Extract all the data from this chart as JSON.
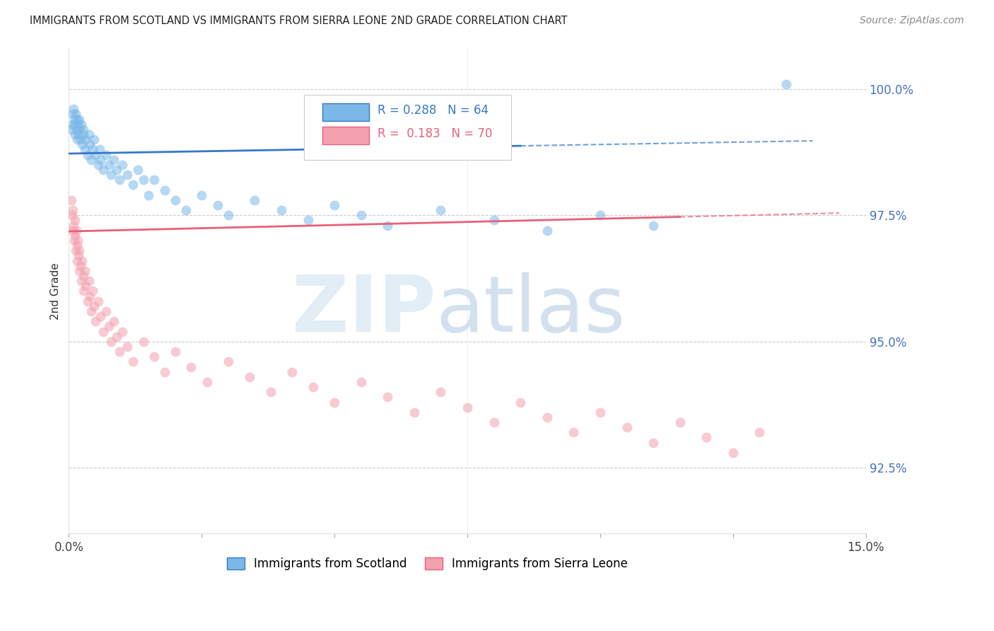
{
  "title": "IMMIGRANTS FROM SCOTLAND VS IMMIGRANTS FROM SIERRA LEONE 2ND GRADE CORRELATION CHART",
  "source": "Source: ZipAtlas.com",
  "ylabel": "2nd Grade",
  "y_ticks": [
    92.5,
    95.0,
    97.5,
    100.0
  ],
  "y_tick_labels": [
    "92.5%",
    "95.0%",
    "97.5%",
    "100.0%"
  ],
  "x_min": 0.0,
  "x_max": 15.0,
  "y_min": 91.2,
  "y_max": 100.8,
  "R_scotland": 0.288,
  "N_scotland": 64,
  "R_sierra_leone": 0.183,
  "N_sierra_leone": 70,
  "scotland_color": "#7ab8e8",
  "sierra_leone_color": "#f4a0b0",
  "scotland_line_color": "#3878c8",
  "sierra_leone_line_color": "#e8607a",
  "legend_scotland": "Immigrants from Scotland",
  "legend_sierra_leone": "Immigrants from Sierra Leone",
  "scotland_x": [
    0.05,
    0.07,
    0.08,
    0.09,
    0.1,
    0.11,
    0.12,
    0.13,
    0.14,
    0.15,
    0.16,
    0.17,
    0.18,
    0.19,
    0.2,
    0.22,
    0.23,
    0.25,
    0.27,
    0.28,
    0.3,
    0.32,
    0.35,
    0.38,
    0.4,
    0.42,
    0.45,
    0.48,
    0.5,
    0.55,
    0.58,
    0.6,
    0.65,
    0.7,
    0.75,
    0.8,
    0.85,
    0.9,
    0.95,
    1.0,
    1.1,
    1.2,
    1.3,
    1.4,
    1.5,
    1.6,
    1.8,
    2.0,
    2.2,
    2.5,
    2.8,
    3.0,
    3.5,
    4.0,
    4.5,
    5.0,
    5.5,
    6.0,
    7.0,
    8.0,
    9.0,
    10.0,
    11.0,
    13.5
  ],
  "scotland_y": [
    99.2,
    99.5,
    99.3,
    99.6,
    99.4,
    99.1,
    99.3,
    99.5,
    99.2,
    99.4,
    99.0,
    99.3,
    99.1,
    99.4,
    99.2,
    99.0,
    99.3,
    98.9,
    99.1,
    99.2,
    98.8,
    99.0,
    98.7,
    99.1,
    98.9,
    98.6,
    98.8,
    99.0,
    98.7,
    98.5,
    98.8,
    98.6,
    98.4,
    98.7,
    98.5,
    98.3,
    98.6,
    98.4,
    98.2,
    98.5,
    98.3,
    98.1,
    98.4,
    98.2,
    97.9,
    98.2,
    98.0,
    97.8,
    97.6,
    97.9,
    97.7,
    97.5,
    97.8,
    97.6,
    97.4,
    97.7,
    97.5,
    97.3,
    97.6,
    97.4,
    97.2,
    97.5,
    97.3,
    100.1
  ],
  "sierra_leone_x": [
    0.05,
    0.06,
    0.07,
    0.08,
    0.09,
    0.1,
    0.11,
    0.12,
    0.13,
    0.14,
    0.15,
    0.16,
    0.17,
    0.18,
    0.19,
    0.2,
    0.22,
    0.24,
    0.25,
    0.27,
    0.28,
    0.3,
    0.32,
    0.35,
    0.38,
    0.4,
    0.42,
    0.45,
    0.48,
    0.5,
    0.55,
    0.6,
    0.65,
    0.7,
    0.75,
    0.8,
    0.85,
    0.9,
    0.95,
    1.0,
    1.1,
    1.2,
    1.4,
    1.6,
    1.8,
    2.0,
    2.3,
    2.6,
    3.0,
    3.4,
    3.8,
    4.2,
    4.6,
    5.0,
    5.5,
    6.0,
    6.5,
    7.0,
    7.5,
    8.0,
    8.5,
    9.0,
    9.5,
    10.0,
    10.5,
    11.0,
    11.5,
    12.0,
    12.5,
    13.0
  ],
  "sierra_leone_y": [
    97.8,
    97.5,
    97.2,
    97.6,
    97.3,
    97.0,
    97.4,
    97.1,
    96.8,
    97.2,
    96.9,
    96.6,
    97.0,
    96.7,
    96.4,
    96.8,
    96.5,
    96.2,
    96.6,
    96.3,
    96.0,
    96.4,
    96.1,
    95.8,
    96.2,
    95.9,
    95.6,
    96.0,
    95.7,
    95.4,
    95.8,
    95.5,
    95.2,
    95.6,
    95.3,
    95.0,
    95.4,
    95.1,
    94.8,
    95.2,
    94.9,
    94.6,
    95.0,
    94.7,
    94.4,
    94.8,
    94.5,
    94.2,
    94.6,
    94.3,
    94.0,
    94.4,
    94.1,
    93.8,
    94.2,
    93.9,
    93.6,
    94.0,
    93.7,
    93.4,
    93.8,
    93.5,
    93.2,
    93.6,
    93.3,
    93.0,
    93.4,
    93.1,
    92.8,
    93.2
  ]
}
